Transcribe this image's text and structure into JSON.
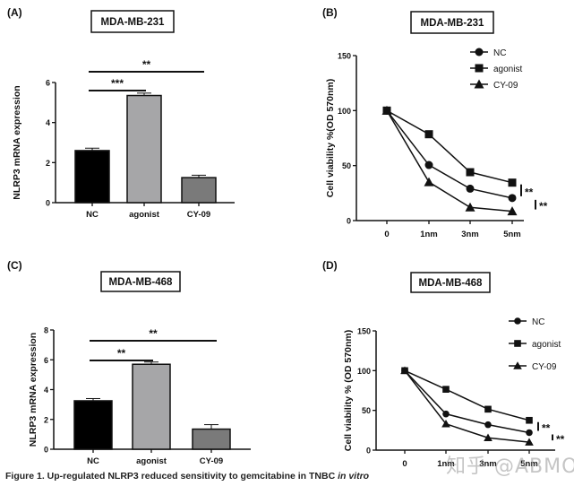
{
  "caption": {
    "prefix": "Figure 1. Up-regulated NLRP3 reduced sensitivity to gemcitabine in TNBC ",
    "italic": "in vitro"
  },
  "watermark": "知乎 @ABMOLE",
  "chart_data": [
    {
      "panel": "(A)",
      "type": "bar",
      "title": "MDA-MB-231",
      "xlabel": "",
      "ylabel": "NLRP3 mRNA expression",
      "categories": [
        "NC",
        "agonist",
        "CY-09"
      ],
      "values": [
        2.6,
        5.35,
        1.25
      ],
      "errors": [
        0.12,
        0.12,
        0.12
      ],
      "bar_colors": [
        "#000000",
        "#a6a6a8",
        "#7a7a7a"
      ],
      "ylim": [
        0,
        6
      ],
      "yticks": [
        0,
        2,
        4,
        6
      ],
      "grid": false,
      "significance": [
        {
          "from": "NC",
          "to": "agonist",
          "label": "***"
        },
        {
          "from": "NC",
          "to": "CY-09",
          "label": "**"
        }
      ]
    },
    {
      "panel": "(B)",
      "type": "line",
      "title": "MDA-MB-231",
      "xlabel": "",
      "ylabel": "Cell viability %(OD 570nm)",
      "x": [
        "0",
        "1nm",
        "3nm",
        "5nm"
      ],
      "series": [
        {
          "name": "NC",
          "marker": "circle",
          "values": [
            100,
            50.5,
            29,
            20.5
          ]
        },
        {
          "name": "agonist",
          "marker": "square",
          "values": [
            100,
            78.5,
            44,
            34.5
          ]
        },
        {
          "name": "CY-09",
          "marker": "triangle",
          "values": [
            100,
            35,
            12,
            8.5
          ]
        }
      ],
      "ylim": [
        0,
        150
      ],
      "yticks": [
        0,
        50,
        100,
        150
      ],
      "grid": false,
      "legend": "top-right",
      "significance": [
        {
          "between": [
            "agonist",
            "NC"
          ],
          "label": "**"
        },
        {
          "between": [
            "NC",
            "CY-09"
          ],
          "label": "**"
        }
      ]
    },
    {
      "panel": "(C)",
      "type": "bar",
      "title": "MDA-MB-468",
      "xlabel": "",
      "ylabel": "NLRP3 mRNA expression",
      "categories": [
        "NC",
        "agonist",
        "CY-09"
      ],
      "values": [
        3.25,
        5.7,
        1.35
      ],
      "errors": [
        0.15,
        0.15,
        0.3
      ],
      "bar_colors": [
        "#000000",
        "#a6a6a8",
        "#7a7a7a"
      ],
      "ylim": [
        0,
        8
      ],
      "yticks": [
        0,
        2,
        4,
        6,
        8
      ],
      "grid": false,
      "significance": [
        {
          "from": "NC",
          "to": "agonist",
          "label": "**"
        },
        {
          "from": "NC",
          "to": "CY-09",
          "label": "**"
        }
      ]
    },
    {
      "panel": "(D)",
      "type": "line",
      "title": "MDA-MB-468",
      "xlabel": "",
      "ylabel": "Cell viability % (OD 570nm)",
      "x": [
        "0",
        "1nm",
        "3nm",
        "5nm"
      ],
      "series": [
        {
          "name": "NC",
          "marker": "circle",
          "values": [
            100,
            45.5,
            32,
            22
          ]
        },
        {
          "name": "agonist",
          "marker": "square",
          "values": [
            100,
            76.5,
            51.5,
            37.5
          ]
        },
        {
          "name": "CY-09",
          "marker": "triangle",
          "values": [
            100,
            33,
            15.5,
            10
          ]
        }
      ],
      "ylim": [
        0,
        150
      ],
      "yticks": [
        0,
        50,
        100,
        150
      ],
      "grid": false,
      "legend": "top-right",
      "significance": [
        {
          "between": [
            "agonist",
            "NC"
          ],
          "label": "**"
        },
        {
          "between": [
            "NC",
            "CY-09"
          ],
          "label": "**"
        }
      ]
    }
  ]
}
